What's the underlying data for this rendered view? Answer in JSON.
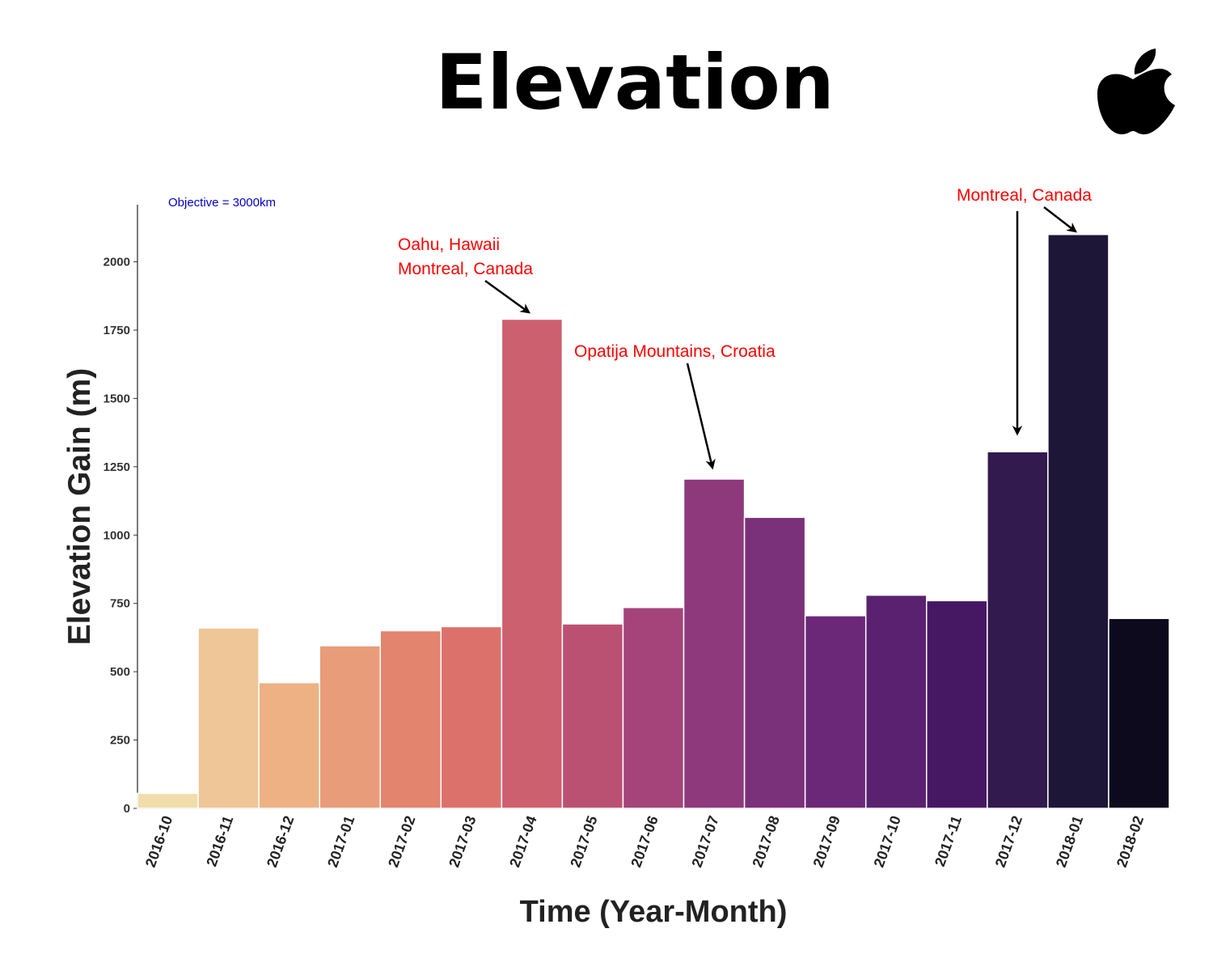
{
  "page": {
    "title": "Elevation",
    "logo_icon": "apple-logo-icon"
  },
  "chart_data": {
    "type": "bar",
    "title": "Elevation",
    "xlabel": "Time (Year-Month)",
    "ylabel": "Elevation Gain (m)",
    "ylim": [
      0,
      2200
    ],
    "yticks": [
      0,
      250,
      500,
      750,
      1000,
      1250,
      1500,
      1750,
      2000
    ],
    "grid": false,
    "categories": [
      "2016-10",
      "2016-11",
      "2016-12",
      "2017-01",
      "2017-02",
      "2017-03",
      "2017-04",
      "2017-05",
      "2017-06",
      "2017-07",
      "2017-08",
      "2017-09",
      "2017-10",
      "2017-11",
      "2017-12",
      "2018-01",
      "2018-02"
    ],
    "values": [
      55,
      660,
      460,
      595,
      650,
      665,
      1790,
      675,
      735,
      1205,
      1065,
      705,
      780,
      760,
      1305,
      2100,
      695
    ],
    "colors": [
      "#f0ddab",
      "#efc697",
      "#edb183",
      "#e99c79",
      "#e3846f",
      "#dc716c",
      "#cd606f",
      "#ba5173",
      "#a4447a",
      "#8e397b",
      "#7b307a",
      "#6b2878",
      "#5a2170",
      "#461864",
      "#321a4e",
      "#1e1637",
      "#0c0a1c"
    ],
    "objective_text": "Objective = 3000km",
    "objective_color": "#0000cc",
    "annotation_color": "#ff0000",
    "annotations": [
      {
        "lines": [
          "Oahu, Hawaii",
          "Montreal, Canada"
        ],
        "target": "2017-04"
      },
      {
        "lines": [
          "Opatija Mountains, Croatia"
        ],
        "target": "2017-07"
      },
      {
        "lines": [
          "Montreal, Canada"
        ],
        "target": [
          "2017-12",
          "2018-01"
        ]
      }
    ]
  }
}
